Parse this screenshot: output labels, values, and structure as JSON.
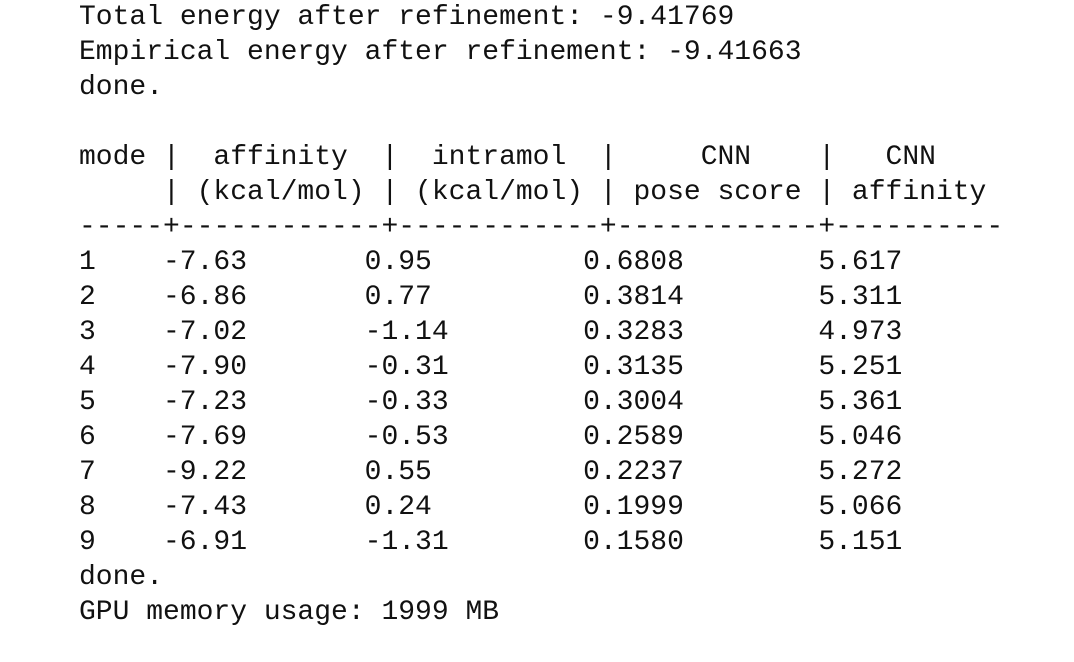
{
  "log_lines": [
    "Total energy after refinement: -9.41769",
    "Empirical energy after refinement: -9.41663",
    "done."
  ],
  "table": {
    "header_lines": [
      "mode |  affinity  |  intramol  |     CNN    |   CNN",
      "     | (kcal/mol) | (kcal/mol) | pose score | affinity"
    ],
    "separator": "-----+------------+------------+------------+----------",
    "rows": [
      [
        "1",
        "-7.63",
        "0.95",
        "0.6808",
        "5.617"
      ],
      [
        "2",
        "-6.86",
        "0.77",
        "0.3814",
        "5.311"
      ],
      [
        "3",
        "-7.02",
        "-1.14",
        "0.3283",
        "4.973"
      ],
      [
        "4",
        "-7.90",
        "-0.31",
        "0.3135",
        "5.251"
      ],
      [
        "5",
        "-7.23",
        "-0.33",
        "0.3004",
        "5.361"
      ],
      [
        "6",
        "-7.69",
        "-0.53",
        "0.2589",
        "5.046"
      ],
      [
        "7",
        "-9.22",
        "0.55",
        "0.2237",
        "5.272"
      ],
      [
        "8",
        "-7.43",
        "0.24",
        "0.1999",
        "5.066"
      ],
      [
        "9",
        "-6.91",
        "-1.31",
        "0.1580",
        "5.151"
      ]
    ]
  },
  "footer_lines": [
    "done.",
    "GPU memory usage: 1999 MB"
  ]
}
